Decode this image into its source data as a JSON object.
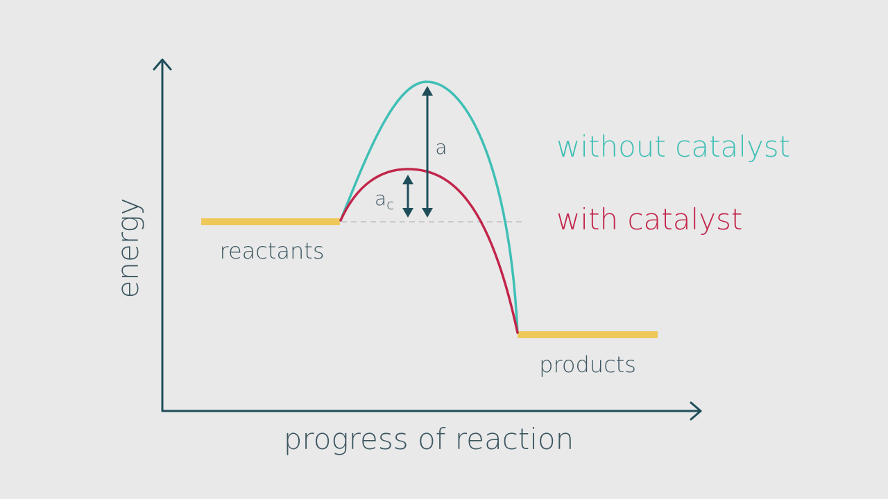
{
  "diagram": {
    "axis_y_label": "energy",
    "axis_x_label": "progress of reaction",
    "reactants_label": "reactants",
    "products_label": "products",
    "arrow_a_label": "a",
    "arrow_ac_label": "a",
    "arrow_ac_subscript": "c",
    "legend": {
      "without_catalyst": "without catalyst",
      "with_catalyst": "with catalyst"
    }
  },
  "colors": {
    "background": "#e9e9e9",
    "axis": "#1f4e5a",
    "text": "#3c5660",
    "level_bar": "#efc85a",
    "without_catalyst": "#3fbfb5",
    "with_catalyst": "#c2254a",
    "baseline_dash": "#c9c9c9"
  }
}
